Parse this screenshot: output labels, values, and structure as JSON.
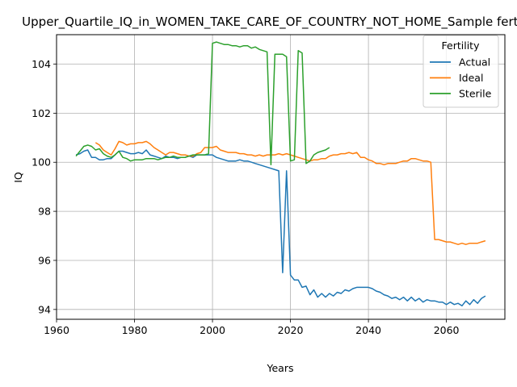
{
  "chart_data": {
    "type": "line",
    "title": "Upper_Quartile_IQ_in_WOMEN_TAKE_CARE_OF_COUNTRY_NOT_HOME_Sample fertility",
    "xlabel": "Years",
    "ylabel": "IQ",
    "xlim": [
      1960,
      2075
    ],
    "ylim": [
      93.6,
      105.2
    ],
    "xticks": [
      1960,
      1980,
      2000,
      2020,
      2040,
      2060
    ],
    "yticks": [
      94,
      96,
      98,
      100,
      102,
      104
    ],
    "grid": true,
    "legend": {
      "title": "Fertility",
      "placement": "top-right"
    },
    "series": [
      {
        "name": "Actual",
        "color": "#1f77b4",
        "x": [
          1965,
          1966,
          1967,
          1968,
          1969,
          1970,
          1971,
          1972,
          1973,
          1974,
          1975,
          1976,
          1977,
          1978,
          1979,
          1980,
          1981,
          1982,
          1983,
          1984,
          1985,
          1986,
          1987,
          1988,
          1989,
          1990,
          1991,
          1992,
          1993,
          1994,
          1995,
          1996,
          1997,
          1998,
          1999,
          2000,
          2001,
          2002,
          2003,
          2004,
          2005,
          2006,
          2007,
          2008,
          2009,
          2010,
          2011,
          2012,
          2013,
          2014,
          2015,
          2016,
          2017,
          2018,
          2019,
          2020,
          2021,
          2022,
          2023,
          2024,
          2025,
          2026,
          2027,
          2028,
          2029,
          2030,
          2031,
          2032,
          2033,
          2034,
          2035,
          2036,
          2037,
          2038,
          2039,
          2040,
          2041,
          2042,
          2043,
          2044,
          2045,
          2046,
          2047,
          2048,
          2049,
          2050,
          2051,
          2052,
          2053,
          2054,
          2055,
          2056,
          2057,
          2058,
          2059,
          2060,
          2061,
          2062,
          2063,
          2064,
          2065,
          2066,
          2067,
          2068,
          2069,
          2070
        ],
        "y": [
          100.3,
          100.35,
          100.45,
          100.5,
          100.2,
          100.2,
          100.1,
          100.1,
          100.15,
          100.15,
          100.3,
          100.45,
          100.45,
          100.4,
          100.35,
          100.35,
          100.4,
          100.35,
          100.5,
          100.3,
          100.25,
          100.2,
          100.15,
          100.25,
          100.2,
          100.2,
          100.15,
          100.2,
          100.2,
          100.25,
          100.2,
          100.3,
          100.3,
          100.3,
          100.3,
          100.3,
          100.2,
          100.15,
          100.1,
          100.05,
          100.05,
          100.05,
          100.1,
          100.05,
          100.05,
          100.0,
          99.95,
          99.9,
          99.85,
          99.8,
          99.75,
          99.7,
          99.65,
          95.5,
          99.65,
          95.4,
          95.2,
          95.2,
          94.9,
          94.95,
          94.6,
          94.8,
          94.5,
          94.65,
          94.5,
          94.65,
          94.55,
          94.7,
          94.65,
          94.8,
          94.75,
          94.85,
          94.9,
          94.9,
          94.9,
          94.9,
          94.85,
          94.75,
          94.7,
          94.6,
          94.55,
          94.45,
          94.5,
          94.4,
          94.5,
          94.35,
          94.5,
          94.35,
          94.45,
          94.3,
          94.4,
          94.35,
          94.35,
          94.3,
          94.3,
          94.2,
          94.3,
          94.2,
          94.25,
          94.15,
          94.35,
          94.2,
          94.4,
          94.25,
          94.45,
          94.55
        ]
      },
      {
        "name": "Ideal",
        "color": "#ff7f0e",
        "x": [
          1970,
          1971,
          1972,
          1973,
          1974,
          1975,
          1976,
          1977,
          1978,
          1979,
          1980,
          1981,
          1982,
          1983,
          1984,
          1985,
          1986,
          1987,
          1988,
          1989,
          1990,
          1991,
          1992,
          1993,
          1994,
          1995,
          1996,
          1997,
          1998,
          1999,
          2000,
          2001,
          2002,
          2003,
          2004,
          2005,
          2006,
          2007,
          2008,
          2009,
          2010,
          2011,
          2012,
          2013,
          2014,
          2015,
          2016,
          2017,
          2018,
          2019,
          2020,
          2021,
          2022,
          2023,
          2024,
          2025,
          2026,
          2027,
          2028,
          2029,
          2030,
          2031,
          2032,
          2033,
          2034,
          2035,
          2036,
          2037,
          2038,
          2039,
          2040,
          2041,
          2042,
          2043,
          2044,
          2045,
          2046,
          2047,
          2048,
          2049,
          2050,
          2051,
          2052,
          2053,
          2054,
          2055,
          2056,
          2057,
          2058,
          2059,
          2060,
          2061,
          2062,
          2063,
          2064,
          2065,
          2066,
          2067,
          2068,
          2069,
          2070
        ],
        "y": [
          100.8,
          100.7,
          100.5,
          100.4,
          100.3,
          100.55,
          100.85,
          100.8,
          100.7,
          100.75,
          100.75,
          100.8,
          100.8,
          100.85,
          100.75,
          100.6,
          100.5,
          100.4,
          100.3,
          100.4,
          100.4,
          100.35,
          100.3,
          100.3,
          100.25,
          100.25,
          100.35,
          100.4,
          100.6,
          100.6,
          100.6,
          100.65,
          100.5,
          100.45,
          100.4,
          100.4,
          100.4,
          100.35,
          100.35,
          100.3,
          100.3,
          100.25,
          100.3,
          100.25,
          100.3,
          100.3,
          100.3,
          100.35,
          100.3,
          100.35,
          100.3,
          100.25,
          100.2,
          100.15,
          100.1,
          100.05,
          100.1,
          100.1,
          100.15,
          100.15,
          100.25,
          100.3,
          100.3,
          100.35,
          100.35,
          100.4,
          100.35,
          100.4,
          100.2,
          100.2,
          100.1,
          100.05,
          99.95,
          99.95,
          99.9,
          99.95,
          99.95,
          99.95,
          100.0,
          100.05,
          100.05,
          100.15,
          100.15,
          100.1,
          100.05,
          100.05,
          100.0,
          96.85,
          96.85,
          96.8,
          96.75,
          96.75,
          96.7,
          96.65,
          96.7,
          96.65,
          96.7,
          96.7,
          96.7,
          96.75,
          96.8
        ],
        "note": ""
      },
      {
        "name": "Sterile",
        "color": "#2ca02c",
        "x": [
          1965,
          1966,
          1967,
          1968,
          1969,
          1970,
          1971,
          1972,
          1973,
          1974,
          1975,
          1976,
          1977,
          1978,
          1979,
          1980,
          1981,
          1982,
          1983,
          1984,
          1985,
          1986,
          1987,
          1988,
          1989,
          1990,
          1991,
          1992,
          1993,
          1994,
          1995,
          1996,
          1997,
          1998,
          1999,
          2000,
          2001,
          2002,
          2003,
          2004,
          2005,
          2006,
          2007,
          2008,
          2009,
          2010,
          2011,
          2012,
          2013,
          2014,
          2015,
          2016,
          2017,
          2018,
          2019,
          2020,
          2021,
          2022,
          2023,
          2024,
          2025,
          2026,
          2027,
          2028,
          2029,
          2030
        ],
        "y": [
          100.25,
          100.45,
          100.65,
          100.7,
          100.65,
          100.5,
          100.55,
          100.35,
          100.25,
          100.2,
          100.3,
          100.45,
          100.2,
          100.15,
          100.05,
          100.1,
          100.1,
          100.1,
          100.15,
          100.15,
          100.15,
          100.1,
          100.15,
          100.2,
          100.2,
          100.25,
          100.2,
          100.2,
          100.2,
          100.25,
          100.3,
          100.3,
          100.3,
          100.3,
          100.35,
          104.85,
          104.9,
          104.85,
          104.8,
          104.8,
          104.75,
          104.75,
          104.7,
          104.75,
          104.75,
          104.65,
          104.7,
          104.6,
          104.55,
          104.5,
          99.9,
          104.4,
          104.4,
          104.4,
          104.3,
          100.05,
          100.1,
          104.55,
          104.45,
          99.95,
          100.05,
          100.3,
          100.4,
          100.45,
          100.5,
          100.6
        ]
      }
    ]
  }
}
